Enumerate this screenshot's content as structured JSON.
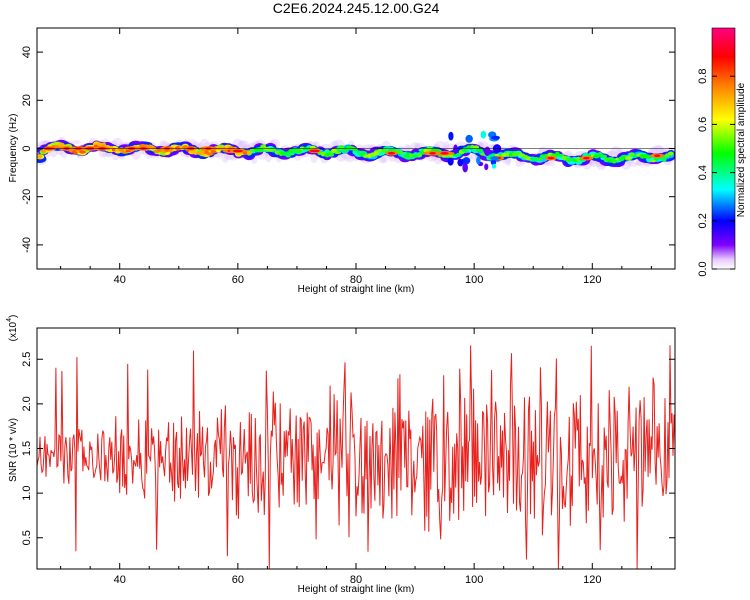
{
  "figure": {
    "title": "C2E6.2024.245.12.00.G24"
  },
  "chart_data": [
    {
      "type": "heatmap",
      "title": "",
      "xlabel": "Height of straight line (km)",
      "ylabel": "Frequency (Hz)",
      "xlim": [
        26,
        134
      ],
      "ylim": [
        -50,
        50
      ],
      "x_ticks": [
        40,
        60,
        80,
        100,
        120
      ],
      "y_ticks": [
        -40,
        -20,
        0,
        20,
        40
      ],
      "colorbar": {
        "label": "Normalized spectral amplitude",
        "range": [
          0,
          1
        ],
        "ticks": [
          "0.0",
          "0.2",
          "0.4",
          "0.6",
          "0.8"
        ],
        "colormap": [
          "#ffffff",
          "#e8c8ff",
          "#8000ff",
          "#0000ff",
          "#00ffff",
          "#00ff00",
          "#ffff00",
          "#ff8000",
          "#ff0000",
          "#ff0080"
        ]
      },
      "ridge": {
        "description_values_hz": {
          "x_km": [
            27,
            35,
            45,
            55,
            65,
            75,
            85,
            95,
            100,
            105,
            115,
            125,
            133
          ],
          "center_freq_hz": [
            0,
            0,
            0,
            -1,
            -1,
            -1,
            -2,
            -2,
            -1,
            -3,
            -4,
            -4,
            -3
          ]
        }
      },
      "grid": false
    },
    {
      "type": "line",
      "title": "",
      "xlabel": "Height of straight line (km)",
      "ylabel": "SNR (10 * v/v)",
      "y_multiplier_label": "(x10",
      "y_multiplier_exp": "4",
      "y_multiplier_close": ")",
      "xlim": [
        26,
        134
      ],
      "ylim": [
        0.15,
        2.85
      ],
      "x_ticks": [
        40,
        60,
        80,
        100,
        120
      ],
      "y_ticks": [
        0.5,
        1.0,
        1.5,
        2.0,
        2.5
      ],
      "series": [
        {
          "color": "#e8211d",
          "x_start": 26,
          "x_end": 134,
          "approx_mean": 1.4,
          "approx_min": 0.15,
          "approx_max": 2.75
        }
      ],
      "grid": false
    }
  ]
}
